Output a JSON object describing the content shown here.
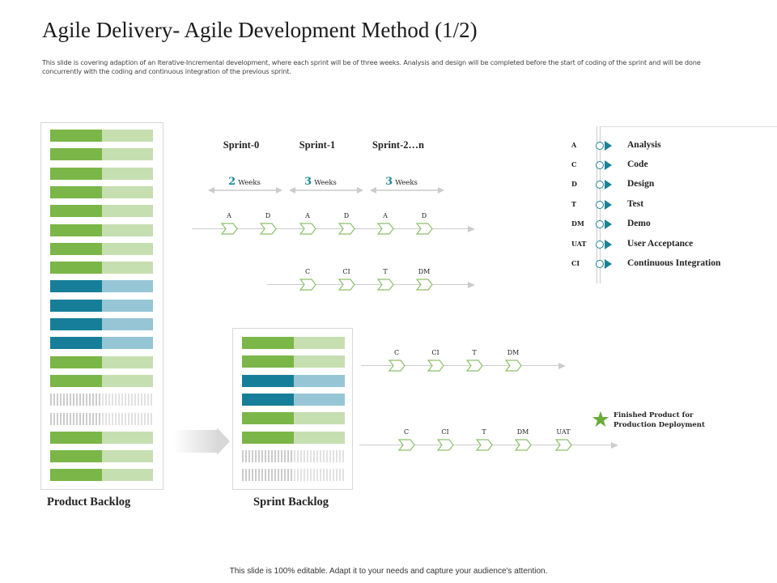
{
  "title": "Agile Delivery- Agile Development Method (1/2)",
  "subtitle": "This slide is covering adaption of an Iterative-Incremental development, where each sprint will be of three weeks. Analysis and design will be completed before the start of coding of the sprint and will be done concurrently with the coding and continuous integration of the previous sprint.",
  "colors": {
    "green": "#7ab648",
    "green_light": "#c6dfb0",
    "teal": "#177e99",
    "teal_light": "#96c6d6",
    "legend_arrow": "#1b8296",
    "star": "#6aaa3a"
  },
  "product_backlog": {
    "caption": "Product Backlog",
    "rows": [
      "green",
      "green",
      "green",
      "green",
      "green",
      "green",
      "green",
      "green",
      "teal",
      "teal",
      "teal",
      "teal",
      "green",
      "green",
      "empty",
      "empty",
      "green",
      "green",
      "green"
    ]
  },
  "sprint_backlog": {
    "caption": "Sprint Backlog",
    "rows": [
      "green",
      "green",
      "teal",
      "teal",
      "green",
      "green",
      "empty",
      "empty"
    ]
  },
  "sprints": [
    {
      "label": "Sprint-0",
      "weeks_num": "2",
      "weeks_unit": "Weeks"
    },
    {
      "label": "Sprint-1",
      "weeks_num": "3",
      "weeks_unit": "Weeks"
    },
    {
      "label": "Sprint-2…n",
      "weeks_num": "3",
      "weeks_unit": "Weeks"
    }
  ],
  "flows": [
    {
      "steps": [
        "A",
        "D",
        "A",
        "D",
        "A",
        "D"
      ]
    },
    {
      "steps": [
        "C",
        "CI",
        "T",
        "DM"
      ]
    },
    {
      "steps": [
        "C",
        "CI",
        "T",
        "DM"
      ]
    },
    {
      "steps": [
        "C",
        "CI",
        "T",
        "DM",
        "UAT"
      ]
    }
  ],
  "legend": [
    {
      "abbr": "A",
      "label": "Analysis"
    },
    {
      "abbr": "C",
      "label": "Code"
    },
    {
      "abbr": "D",
      "label": "Design"
    },
    {
      "abbr": "T",
      "label": "Test"
    },
    {
      "abbr": "DM",
      "label": "Demo"
    },
    {
      "abbr": "UAT",
      "label": "User Acceptance"
    },
    {
      "abbr": "CI",
      "label": "Continuous Integration"
    }
  ],
  "finished": {
    "line1": "Finished Product for",
    "line2": "Production Deployment",
    "icon": "star-icon"
  },
  "footer": "This slide is 100% editable.  Adapt it to your needs and capture your audience's attention."
}
